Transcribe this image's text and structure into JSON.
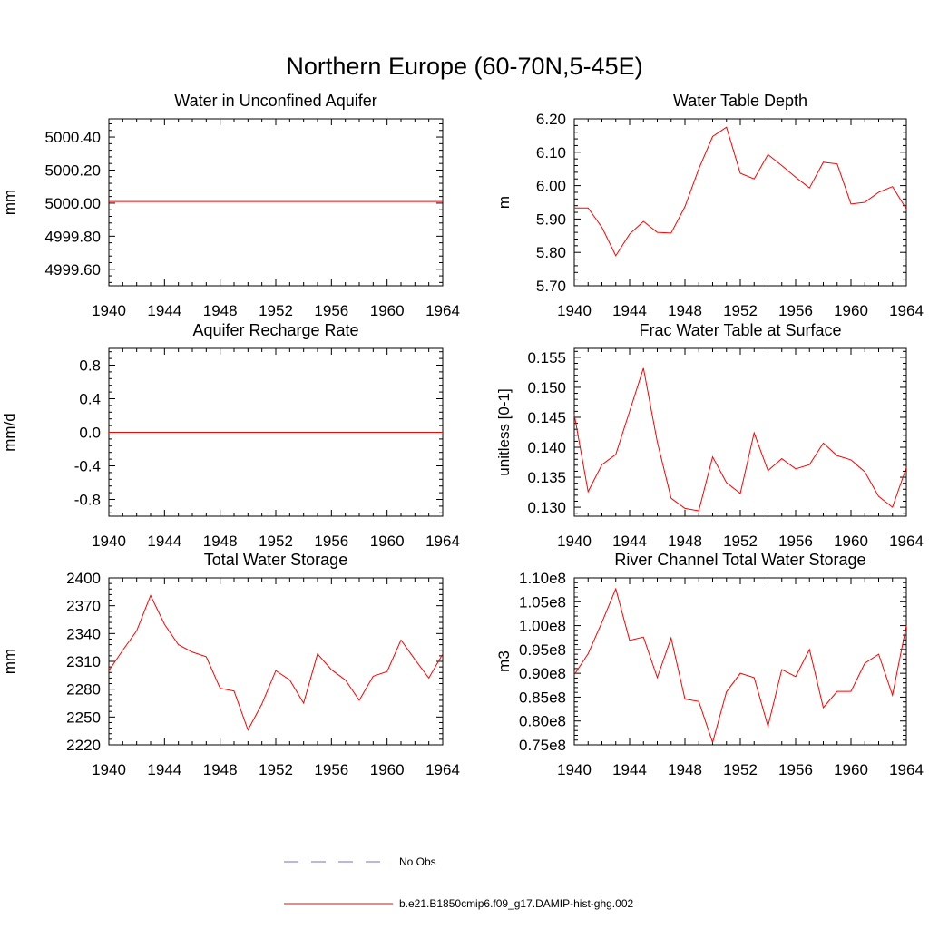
{
  "figure": {
    "title": "Northern Europe (60-70N,5-45E)"
  },
  "legend": {
    "placement": "bottom-center",
    "entries": [
      {
        "label": "No Obs",
        "color": "#7070c8",
        "style": "dashed"
      },
      {
        "label": "b.e21.B1850cmip6.f09_g17.DAMIP-hist-ghg.002",
        "color": "#ff0000",
        "style": "solid"
      }
    ]
  },
  "colors": {
    "series": "#ff0000",
    "axis": "#000000"
  },
  "chart_data": [
    {
      "type": "line",
      "title": "Water in Unconfined Aquifer",
      "ylabel": "mm",
      "xlabel": "",
      "xlim": [
        1940,
        1964
      ],
      "ylim": [
        4999.5,
        5000.51
      ],
      "xticks": [
        1940,
        1944,
        1948,
        1952,
        1956,
        1960,
        1964
      ],
      "xticklabels": [
        "1940",
        "1944",
        "1948",
        "1952",
        "1956",
        "1960",
        "1964"
      ],
      "yticks": [
        4999.6,
        4999.8,
        5000.0,
        5000.2,
        5000.4
      ],
      "yticklabels": [
        "4999.60",
        "4999.80",
        "5000.00",
        "5000.20",
        "5000.40"
      ],
      "x": [
        1940,
        1964
      ],
      "series": [
        {
          "values": [
            5000.01,
            5000.01
          ]
        }
      ]
    },
    {
      "type": "line",
      "title": "Water Table Depth",
      "ylabel": "m",
      "xlabel": "",
      "xlim": [
        1940,
        1964
      ],
      "ylim": [
        5.7,
        6.2
      ],
      "xticks": [
        1940,
        1944,
        1948,
        1952,
        1956,
        1960,
        1964
      ],
      "xticklabels": [
        "1940",
        "1944",
        "1948",
        "1952",
        "1956",
        "1960",
        "1964"
      ],
      "yticks": [
        5.7,
        5.8,
        5.9,
        6.0,
        6.1,
        6.2
      ],
      "yticklabels": [
        "5.70",
        "5.80",
        "5.90",
        "6.00",
        "6.10",
        "6.20"
      ],
      "x": [
        1940,
        1941,
        1942,
        1943,
        1944,
        1945,
        1946,
        1947,
        1948,
        1949,
        1950,
        1951,
        1952,
        1953,
        1954,
        1955,
        1956,
        1957,
        1958,
        1959,
        1960,
        1961,
        1962,
        1963,
        1964
      ],
      "series": [
        {
          "values": [
            5.933,
            5.933,
            5.875,
            5.79,
            5.855,
            5.893,
            5.86,
            5.858,
            5.937,
            6.05,
            6.147,
            6.175,
            6.037,
            6.02,
            6.093,
            6.06,
            6.025,
            5.993,
            6.07,
            6.065,
            5.945,
            5.95,
            5.98,
            5.997,
            5.93
          ]
        }
      ]
    },
    {
      "type": "line",
      "title": "Aquifer Recharge Rate",
      "ylabel": "mm/d",
      "xlabel": "",
      "xlim": [
        1940,
        1964
      ],
      "ylim": [
        -1.0,
        1.0
      ],
      "xticks": [
        1940,
        1944,
        1948,
        1952,
        1956,
        1960,
        1964
      ],
      "xticklabels": [
        "1940",
        "1944",
        "1948",
        "1952",
        "1956",
        "1960",
        "1964"
      ],
      "yticks": [
        -0.8,
        -0.4,
        0.0,
        0.4,
        0.8
      ],
      "yticklabels": [
        "-0.8",
        "-0.4",
        "0.0",
        "0.4",
        "0.8"
      ],
      "x": [
        1940,
        1964
      ],
      "series": [
        {
          "values": [
            0.0,
            0.0
          ]
        }
      ]
    },
    {
      "type": "line",
      "title": "Frac Water Table at Surface",
      "ylabel": "unitless [0-1]",
      "xlabel": "",
      "xlim": [
        1940,
        1964
      ],
      "ylim": [
        0.1285,
        0.1565
      ],
      "xticks": [
        1940,
        1944,
        1948,
        1952,
        1956,
        1960,
        1964
      ],
      "xticklabels": [
        "1940",
        "1944",
        "1948",
        "1952",
        "1956",
        "1960",
        "1964"
      ],
      "yticks": [
        0.13,
        0.135,
        0.14,
        0.145,
        0.15,
        0.155
      ],
      "yticklabels": [
        "0.130",
        "0.135",
        "0.140",
        "0.145",
        "0.150",
        "0.155"
      ],
      "x": [
        1940,
        1941,
        1942,
        1943,
        1944,
        1945,
        1946,
        1947,
        1948,
        1949,
        1950,
        1951,
        1952,
        1953,
        1954,
        1955,
        1956,
        1957,
        1958,
        1959,
        1960,
        1961,
        1962,
        1963,
        1964
      ],
      "series": [
        {
          "values": [
            0.1455,
            0.1326,
            0.1371,
            0.1388,
            0.146,
            0.1532,
            0.1409,
            0.1315,
            0.1298,
            0.1294,
            0.1384,
            0.1341,
            0.1323,
            0.1424,
            0.1361,
            0.1381,
            0.1364,
            0.1371,
            0.1407,
            0.1386,
            0.1379,
            0.1359,
            0.1318,
            0.13,
            0.1366
          ]
        }
      ]
    },
    {
      "type": "line",
      "title": "Total Water Storage",
      "ylabel": "mm",
      "xlabel": "",
      "xlim": [
        1940,
        1964
      ],
      "ylim": [
        2220,
        2400
      ],
      "xticks": [
        1940,
        1944,
        1948,
        1952,
        1956,
        1960,
        1964
      ],
      "xticklabels": [
        "1940",
        "1944",
        "1948",
        "1952",
        "1956",
        "1960",
        "1964"
      ],
      "yticks": [
        2220,
        2250,
        2280,
        2310,
        2340,
        2370,
        2400
      ],
      "yticklabels": [
        "2220",
        "2250",
        "2280",
        "2310",
        "2340",
        "2370",
        "2400"
      ],
      "x": [
        1940,
        1941,
        1942,
        1943,
        1944,
        1945,
        1946,
        1947,
        1948,
        1949,
        1950,
        1951,
        1952,
        1953,
        1954,
        1955,
        1956,
        1957,
        1958,
        1959,
        1960,
        1961,
        1962,
        1963,
        1964
      ],
      "series": [
        {
          "values": [
            2300,
            2322,
            2343,
            2381,
            2350,
            2328,
            2320,
            2315,
            2281,
            2278,
            2236,
            2264,
            2300,
            2290,
            2265,
            2318,
            2301,
            2290,
            2268,
            2294,
            2299,
            2333,
            2312,
            2292,
            2318
          ]
        }
      ]
    },
    {
      "type": "line",
      "title": "River Channel Total Water Storage",
      "ylabel": "m3",
      "xlabel": "",
      "xlim": [
        1940,
        1964
      ],
      "ylim": [
        75000000.0,
        110000000.0
      ],
      "xticks": [
        1940,
        1944,
        1948,
        1952,
        1956,
        1960,
        1964
      ],
      "xticklabels": [
        "1940",
        "1944",
        "1948",
        "1952",
        "1956",
        "1960",
        "1964"
      ],
      "yticks": [
        75000000.0,
        80000000.0,
        85000000.0,
        90000000.0,
        95000000.0,
        100000000.0,
        105000000.0,
        110000000.0
      ],
      "yticklabels": [
        "0.75e8",
        "0.80e8",
        "0.85e8",
        "0.90e8",
        "0.95e8",
        "1.00e8",
        "1.05e8",
        "1.10e8"
      ],
      "x": [
        1940,
        1941,
        1942,
        1943,
        1944,
        1945,
        1946,
        1947,
        1948,
        1949,
        1950,
        1951,
        1952,
        1953,
        1954,
        1955,
        1956,
        1957,
        1958,
        1959,
        1960,
        1961,
        1962,
        1963,
        1964
      ],
      "series": [
        {
          "values": [
            89700000.0,
            94100000.0,
            100700000.0,
            107700000.0,
            96900000.0,
            97600000.0,
            89100000.0,
            97400000.0,
            84600000.0,
            84100000.0,
            75500000.0,
            86100000.0,
            90000000.0,
            89100000.0,
            78900000.0,
            90800000.0,
            89300000.0,
            95000000.0,
            82800000.0,
            86200000.0,
            86200000.0,
            92100000.0,
            94000000.0,
            85400000.0,
            100000000.0
          ]
        }
      ]
    }
  ]
}
